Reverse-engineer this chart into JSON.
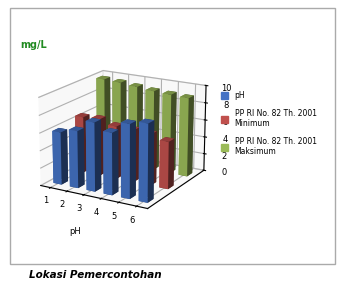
{
  "title_ylabel": "mg/L",
  "xlabel": "pH",
  "caption": "Lokasi Pemercontohan",
  "categories": [
    1,
    2,
    3,
    4,
    5,
    6
  ],
  "series": {
    "pH": [
      6.0,
      6.5,
      7.8,
      7.0,
      8.3,
      8.7
    ],
    "Minimum": [
      6.5,
      6.6,
      6.1,
      6.0,
      5.9,
      5.4
    ],
    "Maksimum": [
      9.8,
      9.7,
      9.5,
      9.3,
      9.2,
      9.1
    ]
  },
  "colors": {
    "pH": "#4472C4",
    "Minimum": "#C0504D",
    "Maksimum": "#9BBB59"
  },
  "legend_labels": [
    "pH",
    "PP RI No. 82 Th. 2001\nMinimum",
    "PP RI No. 82 Th. 2001\nMaksimum"
  ],
  "ylim": [
    0,
    10
  ],
  "yticks": [
    0,
    2,
    4,
    6,
    8,
    10
  ],
  "bg_color": "#FFFFFF",
  "outer_border_color": "#AAAAAA",
  "text_top_color": "#228B22"
}
